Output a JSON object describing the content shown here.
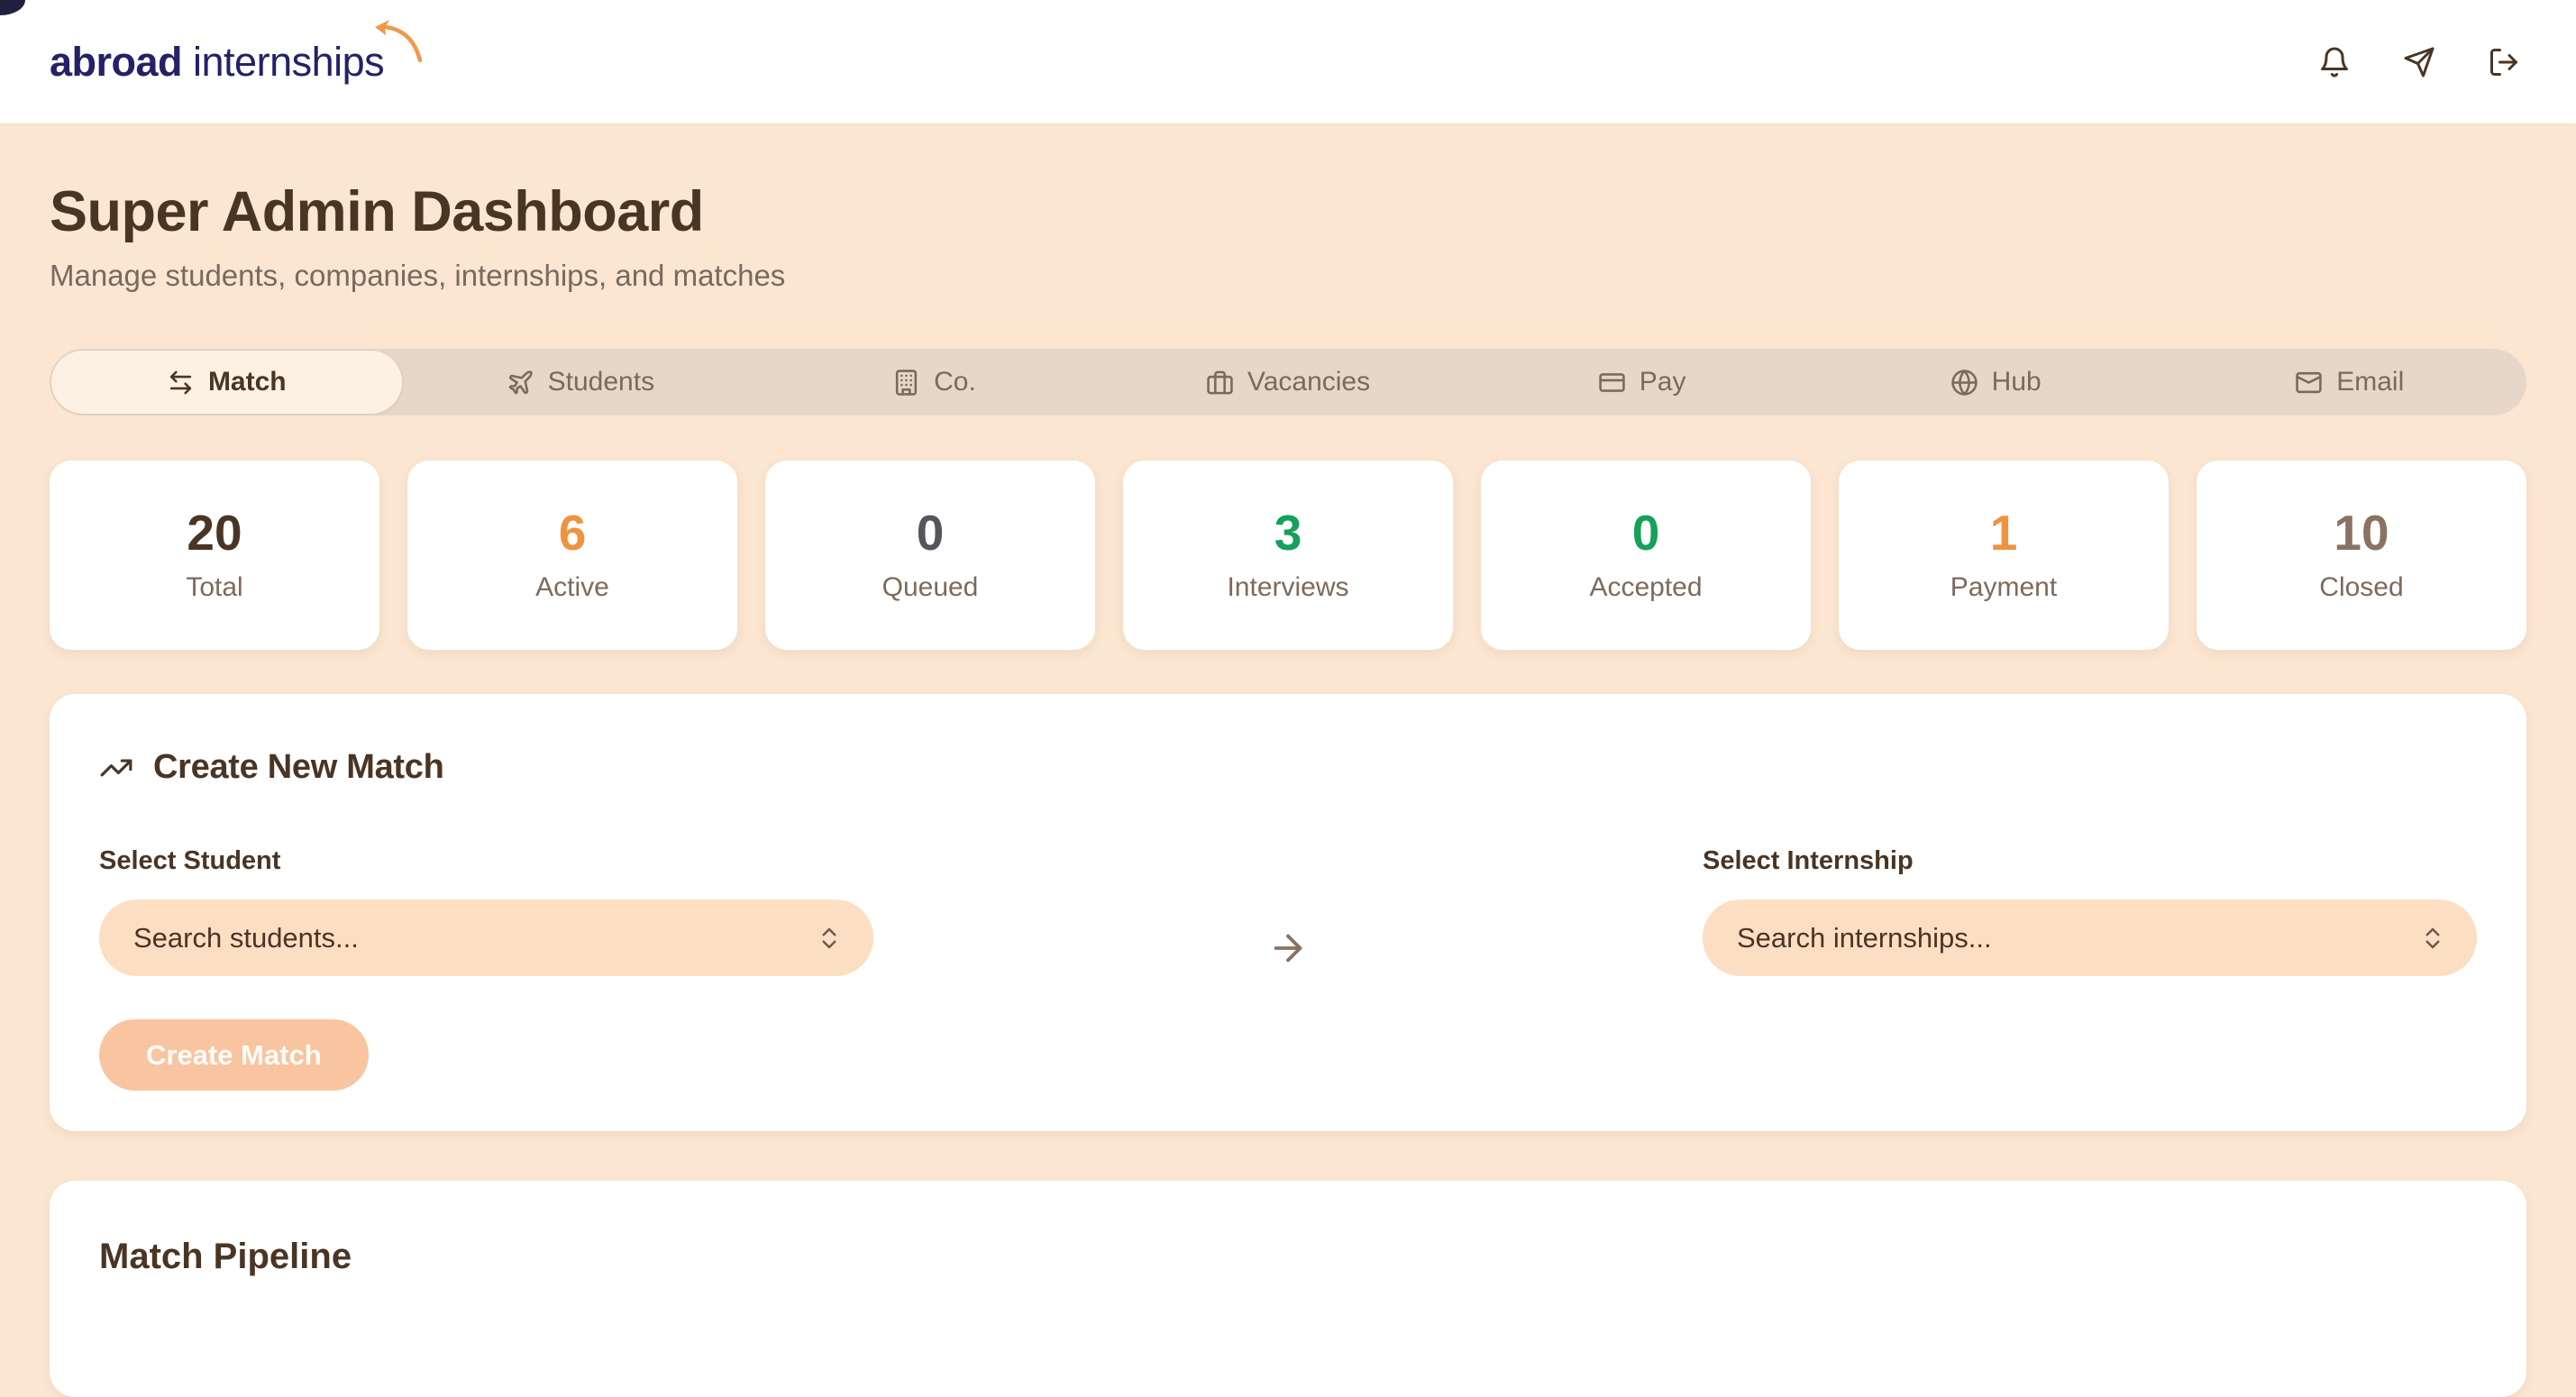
{
  "brand": {
    "name_bold": "abroad",
    "name_regular": "internships",
    "navy": "#232267",
    "orange": "#f0984a",
    "swoosh_icon": "plane-swoosh"
  },
  "topbar_icons": [
    {
      "name": "bell-icon"
    },
    {
      "name": "send-icon"
    },
    {
      "name": "logout-icon"
    }
  ],
  "page": {
    "title": "Super Admin Dashboard",
    "subtitle": "Manage students, companies, internships, and matches"
  },
  "tabs": [
    {
      "label": "Match",
      "icon": "arrow-left-right",
      "active": true
    },
    {
      "label": "Students",
      "icon": "plane",
      "active": false
    },
    {
      "label": "Co.",
      "icon": "building",
      "active": false
    },
    {
      "label": "Vacancies",
      "icon": "briefcase",
      "active": false
    },
    {
      "label": "Pay",
      "icon": "credit-card",
      "active": false
    },
    {
      "label": "Hub",
      "icon": "globe",
      "active": false
    },
    {
      "label": "Email",
      "icon": "mail",
      "active": false
    }
  ],
  "stats": [
    {
      "value": "20",
      "label": "Total",
      "color": "#4a3524"
    },
    {
      "value": "6",
      "label": "Active",
      "color": "#ee9440"
    },
    {
      "value": "0",
      "label": "Queued",
      "color": "#56555e"
    },
    {
      "value": "3",
      "label": "Interviews",
      "color": "#16a05a"
    },
    {
      "value": "0",
      "label": "Accepted",
      "color": "#16a05a"
    },
    {
      "value": "1",
      "label": "Payment",
      "color": "#ee9440"
    },
    {
      "value": "10",
      "label": "Closed",
      "color": "#8a7262"
    }
  ],
  "create_match": {
    "title": "Create New Match",
    "title_icon": "trending-up",
    "student_label": "Select Student",
    "student_placeholder": "Search students...",
    "arrow_icon": "arrow-right",
    "internship_label": "Select Internship",
    "internship_placeholder": "Search internships...",
    "button_label": "Create Match"
  },
  "pipeline": {
    "title": "Match Pipeline"
  },
  "colors": {
    "page_bg": "#fce6d1",
    "header_bg": "#ffffff",
    "text_dark": "#4a3524",
    "text_muted": "#776a60",
    "tabbar_bg": "#e6d7c9",
    "tab_active_bg": "#fdf1e3",
    "select_bg": "#fcdfc3",
    "button_bg": "#f9c4a0"
  }
}
